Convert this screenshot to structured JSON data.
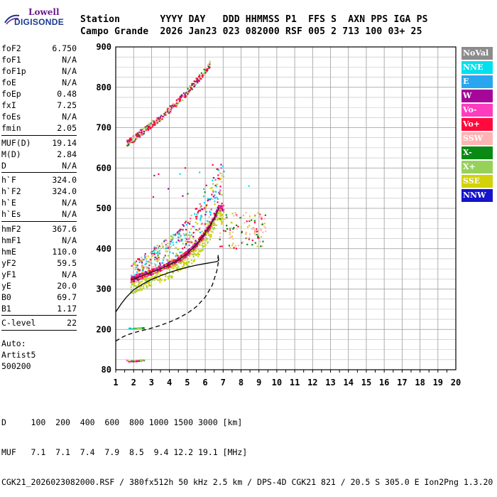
{
  "logo": {
    "line1": "Lowell",
    "line2": "DIGISONDE"
  },
  "header": {
    "row1": "Station       YYYY DAY   DDD HHMMSS P1  FFS S  AXN PPS IGA PS",
    "row2": "Campo Grande  2026 Jan23 023 082000 RSF 005 2 713 100 03+ 25"
  },
  "params": [
    {
      "k": "foF2",
      "v": "6.750"
    },
    {
      "k": "foF1",
      "v": "N/A"
    },
    {
      "k": "foF1p",
      "v": "N/A"
    },
    {
      "k": "foE",
      "v": "N/A"
    },
    {
      "k": "foEp",
      "v": "0.48"
    },
    {
      "k": "fxI",
      "v": "7.25"
    },
    {
      "k": "foEs",
      "v": "N/A"
    },
    {
      "k": "fmin",
      "v": "2.05"
    },
    {
      "sep": true
    },
    {
      "k": "MUF(D)",
      "v": "19.14"
    },
    {
      "k": "M(D)",
      "v": "2.84"
    },
    {
      "k": "D",
      "v": "N/A"
    },
    {
      "sep": true
    },
    {
      "k": "h`F",
      "v": "324.0"
    },
    {
      "k": "h`F2",
      "v": "324.0"
    },
    {
      "k": "h`E",
      "v": "N/A"
    },
    {
      "k": "h`Es",
      "v": "N/A"
    },
    {
      "sep": true
    },
    {
      "k": "hmF2",
      "v": "367.6"
    },
    {
      "k": "hmF1",
      "v": "N/A"
    },
    {
      "k": "hmE",
      "v": "110.0"
    },
    {
      "k": "yF2",
      "v": "59.5"
    },
    {
      "k": "yF1",
      "v": "N/A"
    },
    {
      "k": "yE",
      "v": "20.0"
    },
    {
      "k": "B0",
      "v": "69.7"
    },
    {
      "k": "B1",
      "v": "1.17"
    },
    {
      "sep": true
    },
    {
      "k": "C-level",
      "v": "22"
    },
    {
      "sep": true
    }
  ],
  "auto": {
    "line1": "Auto:",
    "line2": "Artist5",
    "line3": "500200"
  },
  "legend": [
    {
      "label": "NoVal",
      "color": "#8c8c8c"
    },
    {
      "label": "NNE",
      "color": "#00e0ee"
    },
    {
      "label": "E",
      "color": "#2aa5f0"
    },
    {
      "label": "W",
      "color": "#a6069a"
    },
    {
      "label": "Vo-",
      "color": "#ff3cbe"
    },
    {
      "label": "Vo+",
      "color": "#ff0a3c"
    },
    {
      "label": "SSW",
      "color": "#ffb4b4"
    },
    {
      "label": "X-",
      "color": "#0a8a14"
    },
    {
      "label": "X+",
      "color": "#96d25a"
    },
    {
      "label": "SSE",
      "color": "#d2d20a"
    },
    {
      "label": "NNW",
      "color": "#1414cc"
    }
  ],
  "chart_data": {
    "type": "scatter",
    "title": "",
    "xlabel": "",
    "ylabel": "",
    "xlim": [
      1,
      20
    ],
    "ylim": [
      80,
      900
    ],
    "xticks": [
      "1",
      "2",
      "3",
      "4",
      "5",
      "6",
      "7",
      "8",
      "9",
      "10",
      "11",
      "12",
      "13",
      "14",
      "15",
      "16",
      "17",
      "18",
      "19",
      "20"
    ],
    "yticks": [
      "80",
      "200",
      "300",
      "400",
      "500",
      "600",
      "700",
      "800",
      "900"
    ],
    "y_scale": "reciprocal-like (ionogram height axis)",
    "grid": true,
    "legend_position": "right",
    "series": [
      {
        "name": "Vo+",
        "kind": "F2 trace",
        "x": [
          1.85,
          2.2,
          2.6,
          3.0,
          3.5,
          4.0,
          4.5,
          5.0,
          5.5,
          5.9,
          6.2,
          6.5,
          6.75
        ],
        "y": [
          322,
          328,
          335,
          342,
          350,
          360,
          372,
          388,
          410,
          432,
          452,
          475,
          500
        ]
      },
      {
        "name": "Vo+",
        "kind": "2nd hop",
        "x": [
          1.6,
          2.0,
          2.5,
          3.0,
          3.5,
          4.0,
          4.5,
          5.0,
          5.5,
          6.0,
          6.3
        ],
        "y": [
          660,
          672,
          690,
          708,
          725,
          745,
          765,
          788,
          815,
          840,
          860
        ]
      },
      {
        "name": "X-",
        "kind": "E-layer echoes",
        "x": [
          1.7,
          2.0,
          2.3,
          2.6
        ],
        "y": [
          202,
          202,
          203,
          203
        ]
      },
      {
        "name": "Vo+",
        "kind": "low echoes",
        "x": [
          1.6,
          1.9,
          2.2,
          2.6
        ],
        "y": [
          106,
          105,
          106,
          108
        ]
      }
    ],
    "profile_solid": {
      "x": [
        1.0,
        1.3,
        1.6,
        2.0,
        2.5,
        3.0,
        3.5,
        4.0,
        4.5,
        5.0,
        5.5,
        6.0,
        6.4,
        6.65,
        6.75,
        6.7
      ],
      "y": [
        243,
        263,
        280,
        298,
        312,
        324,
        333,
        341,
        348,
        354,
        359,
        363,
        366,
        368,
        371,
        380
      ]
    },
    "profile_dashed": {
      "x": [
        1.0,
        1.3,
        1.6,
        2.0,
        2.5,
        3.0,
        3.5,
        4.0,
        4.5,
        5.0,
        5.5,
        6.0,
        6.4,
        6.65,
        6.75,
        6.7
      ],
      "y": [
        165,
        175,
        183,
        190,
        197,
        203,
        210,
        218,
        228,
        240,
        256,
        280,
        310,
        345,
        371,
        390
      ]
    }
  },
  "bottom": {
    "line1": "D     100  200  400  600  800 1000 1500 3000 [km]",
    "line2": "MUF   7.1  7.1  7.4  7.9  8.5  9.4 12.2 19.1 [MHz]",
    "line3": "CGK21_2026023082000.RSF / 380fx512h 50 kHz 2.5 km / DPS-4D CGK21 821 / 20.5 S 305.0 E Ion2Png 1.3.20"
  }
}
